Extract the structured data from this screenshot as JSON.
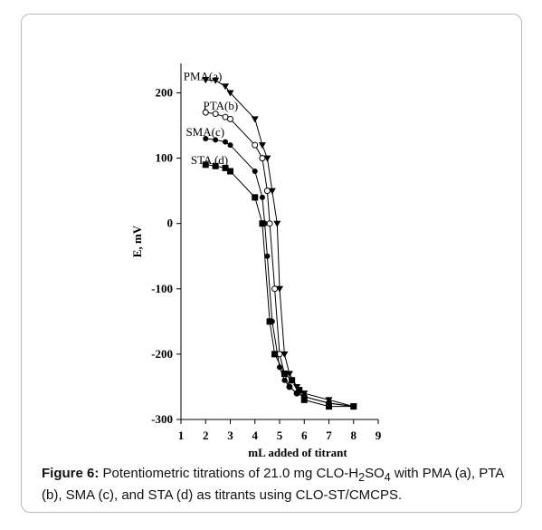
{
  "chart_data": {
    "type": "line",
    "xlabel": "mL added of titrant",
    "ylabel": "E, mV",
    "xlim": [
      1,
      9
    ],
    "ylim": [
      -300,
      250
    ],
    "xticks": [
      1,
      2,
      3,
      4,
      5,
      6,
      7,
      8,
      9
    ],
    "yticks": [
      200,
      100,
      0,
      -100,
      -200,
      -300
    ],
    "xtick_labels": [
      "1",
      "2",
      "3",
      "4",
      "5",
      "6",
      "7",
      "8",
      "9"
    ],
    "ytick_labels": [
      "200",
      "100",
      "0",
      "-100",
      "-200",
      "-300"
    ],
    "grid": false,
    "series": [
      {
        "name": "PMA(a)",
        "marker": "triangle-down",
        "color": "#000000",
        "x": [
          2,
          2.4,
          2.8,
          3,
          4,
          4.3,
          4.5,
          4.7,
          4.9,
          5,
          5.2,
          5.4,
          5.7,
          6,
          7,
          8
        ],
        "y": [
          220,
          219,
          210,
          200,
          160,
          120,
          100,
          50,
          0,
          -100,
          -200,
          -230,
          -250,
          -260,
          -270,
          -280
        ]
      },
      {
        "name": "PTA(b)",
        "marker": "circle-open",
        "color": "#000000",
        "x": [
          2,
          2.4,
          2.8,
          3,
          4,
          4.3,
          4.5,
          4.6,
          4.8,
          5,
          5.2,
          5.4,
          5.7,
          6,
          7,
          8
        ],
        "y": [
          170,
          168,
          163,
          160,
          120,
          100,
          50,
          0,
          -100,
          -200,
          -230,
          -250,
          -260,
          -265,
          -275,
          -280
        ]
      },
      {
        "name": "SMA(c)",
        "marker": "circle-filled",
        "color": "#000000",
        "x": [
          2,
          2.4,
          2.8,
          3,
          4,
          4.3,
          4.4,
          4.5,
          4.7,
          5,
          5.2,
          5.4,
          5.7,
          6,
          7,
          8
        ],
        "y": [
          130,
          128,
          125,
          120,
          80,
          40,
          0,
          -50,
          -150,
          -220,
          -240,
          -250,
          -260,
          -265,
          -275,
          -280
        ]
      },
      {
        "name": "STA (d)",
        "marker": "square-filled",
        "color": "#000000",
        "x": [
          2,
          2.4,
          2.8,
          3,
          4,
          4.3,
          4.6,
          4.8,
          5.2,
          5.5,
          5.8,
          6,
          7,
          8
        ],
        "y": [
          90,
          88,
          85,
          80,
          40,
          0,
          -150,
          -200,
          -230,
          -240,
          -255,
          -270,
          -280,
          -280
        ]
      }
    ],
    "annotations": [
      {
        "text": "PMA(a)",
        "x": 1.1,
        "y": 225
      },
      {
        "text": "PTA(b)",
        "x": 1.9,
        "y": 180
      },
      {
        "text": "SMA(c)",
        "x": 1.2,
        "y": 140
      },
      {
        "text": "STA (d)",
        "x": 1.4,
        "y": 97
      }
    ]
  },
  "caption": {
    "label": "Figure 6:",
    "text_before_sub": " Potentiometric titrations of 21.0 mg CLO-H",
    "sub_1": "2",
    "text_mid": "SO",
    "sub_2": "4",
    "text_after": " with PMA (a), PTA (b), SMA (c), and STA (d) as titrants using CLO-ST/CMCPS."
  }
}
